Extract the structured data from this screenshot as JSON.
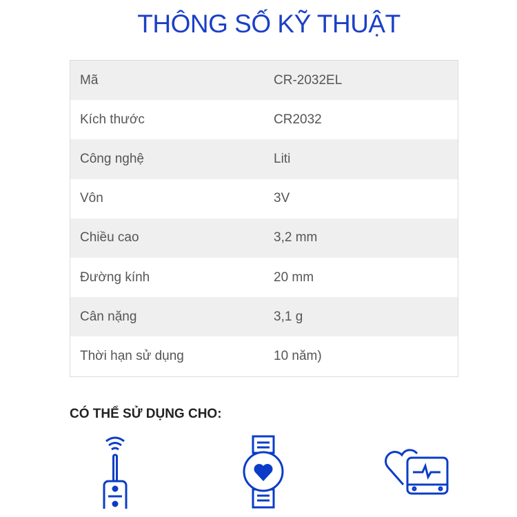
{
  "title": "THÔNG SỐ KỸ THUẬT",
  "specs": [
    {
      "label": "Mã",
      "value": "CR-2032EL"
    },
    {
      "label": "Kích thước",
      "value": "CR2032"
    },
    {
      "label": "Công nghệ",
      "value": "Liti"
    },
    {
      "label": "Vôn",
      "value": "3V"
    },
    {
      "label": "Chiều cao",
      "value": "3,2 mm"
    },
    {
      "label": "Đường kính",
      "value": "20 mm"
    },
    {
      "label": "Cân nặng",
      "value": "3,1 g"
    },
    {
      "label": "Thời hạn sử dụng",
      "value": "10 năm)"
    }
  ],
  "usage_heading": "CÓ THỂ SỬ DỤNG CHO:",
  "usage_icons": [
    "car-remote-icon",
    "smartwatch-heart-icon",
    "heart-monitor-icon"
  ],
  "colors": {
    "accent": "#1b3fc6",
    "icon": "#0a3cc8",
    "row_alt": "#efefef"
  }
}
